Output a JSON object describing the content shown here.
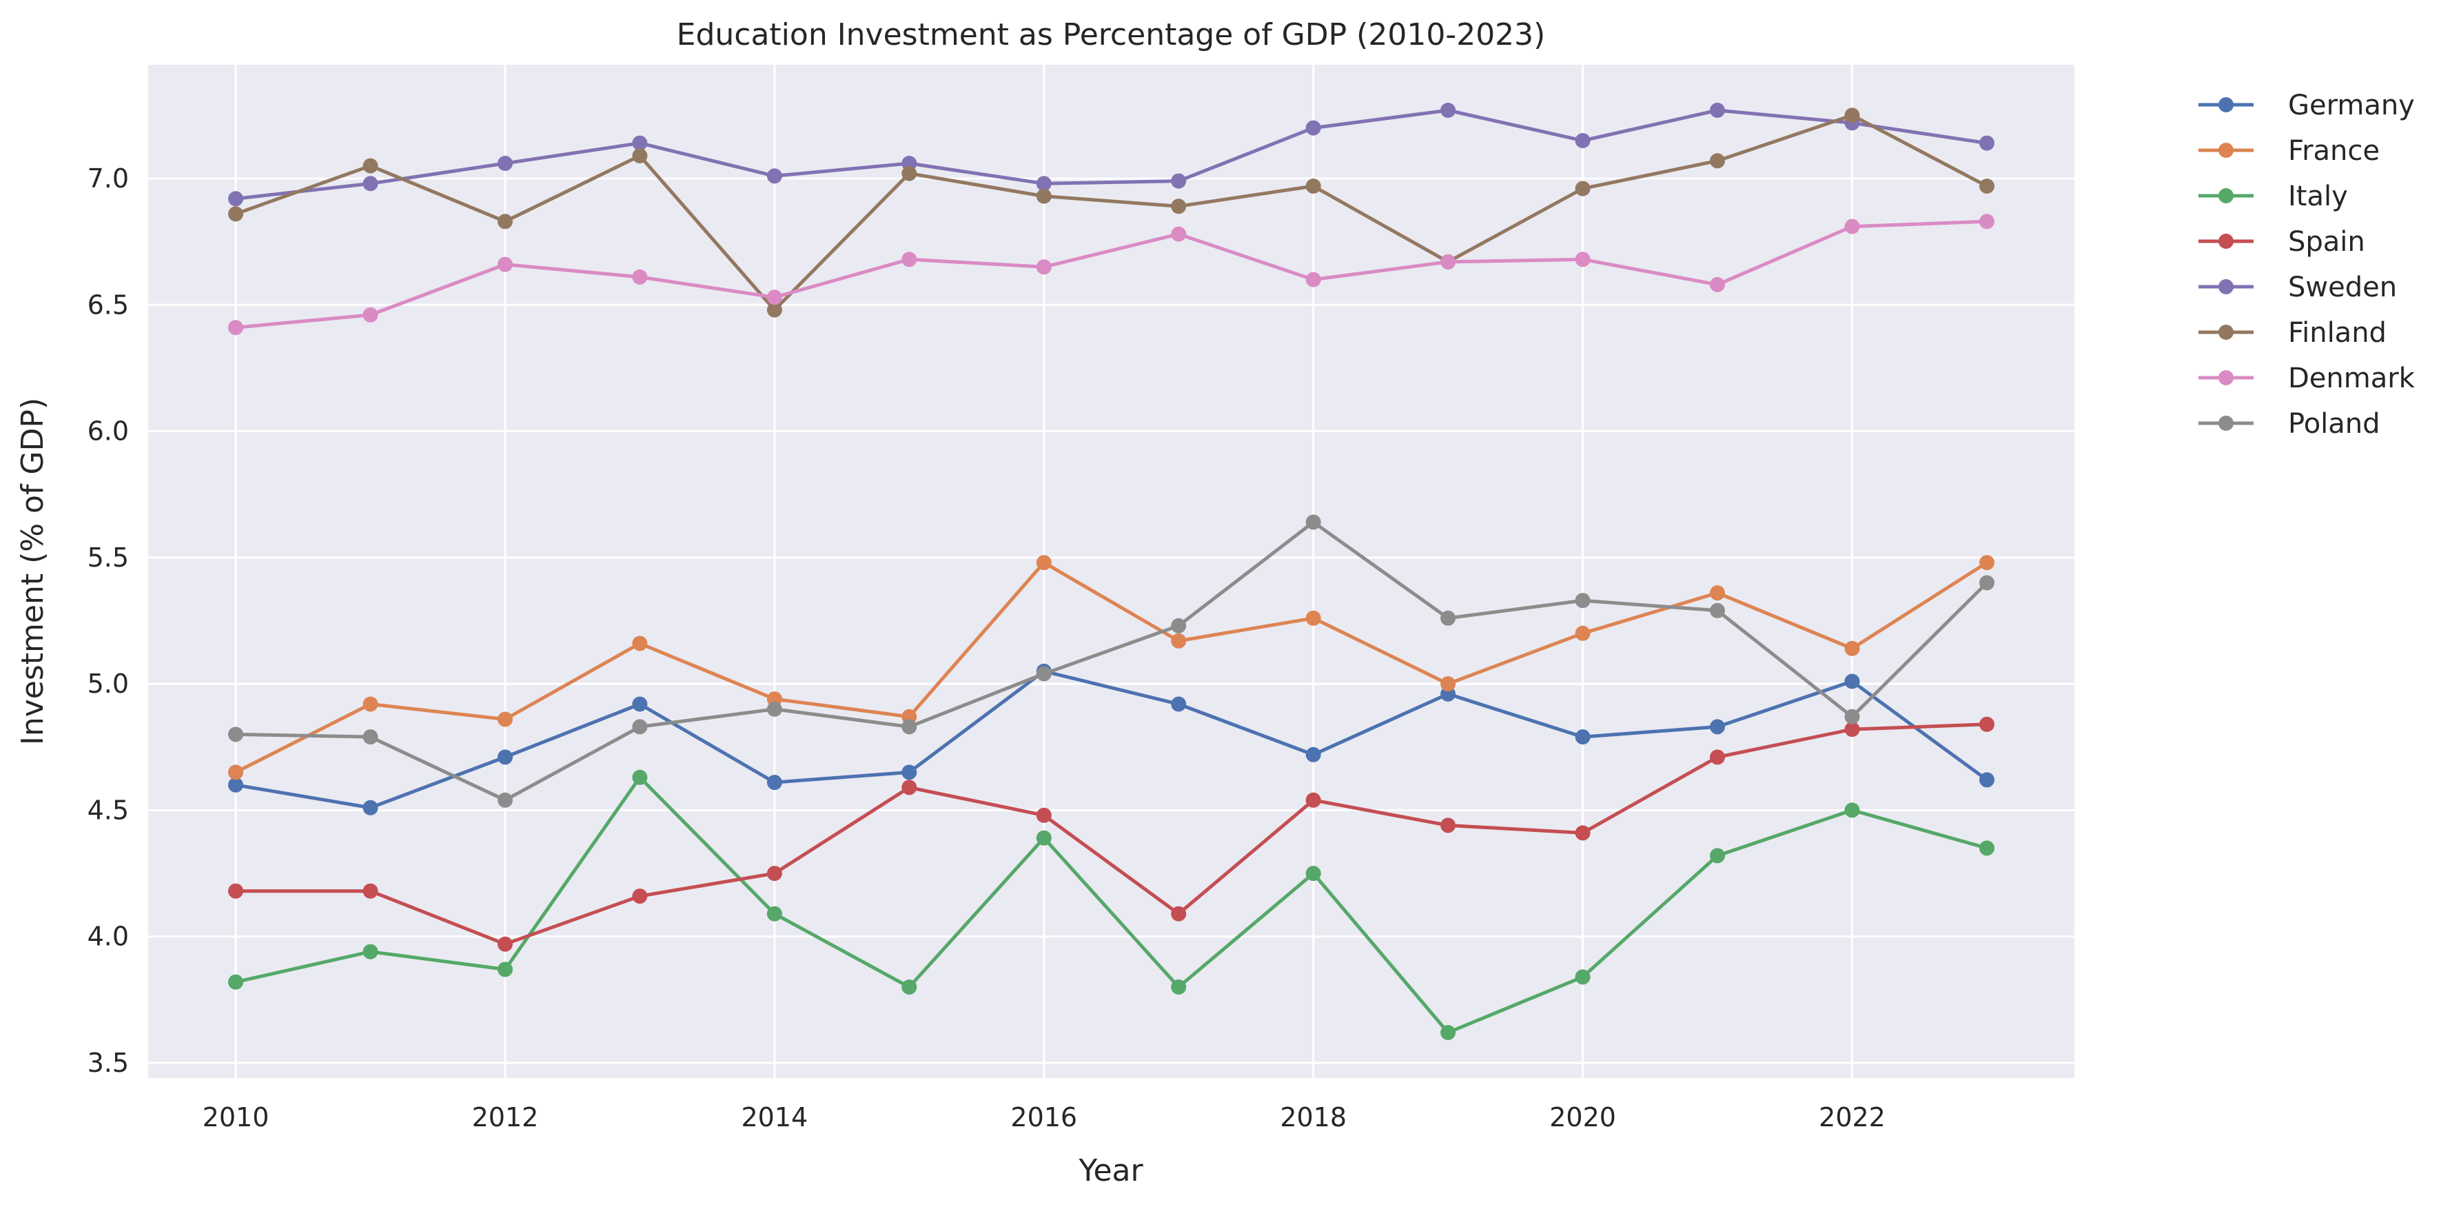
{
  "chart_data": {
    "type": "line",
    "title": "Education Investment as Percentage of GDP (2010-2023)",
    "xlabel": "Year",
    "ylabel": "Investment (% of GDP)",
    "x": [
      2010,
      2011,
      2012,
      2013,
      2014,
      2015,
      2016,
      2017,
      2018,
      2019,
      2020,
      2021,
      2022,
      2023
    ],
    "xlim": [
      2009.35,
      2023.65
    ],
    "ylim": [
      3.44,
      7.45
    ],
    "xticks": [
      2010,
      2012,
      2014,
      2016,
      2018,
      2020,
      2022
    ],
    "yticks": [
      3.5,
      4.0,
      4.5,
      5.0,
      5.5,
      6.0,
      6.5,
      7.0
    ],
    "grid": true,
    "background": "#eaeaf2",
    "legend_position": "outside-top-right",
    "series": [
      {
        "name": "Germany",
        "color": "#4c72b0",
        "values": [
          4.6,
          4.51,
          4.71,
          4.92,
          4.61,
          4.65,
          5.05,
          4.92,
          4.72,
          4.96,
          4.79,
          4.83,
          5.01,
          4.62
        ]
      },
      {
        "name": "France",
        "color": "#dd8452",
        "values": [
          4.65,
          4.92,
          4.86,
          5.16,
          4.94,
          4.87,
          5.48,
          5.17,
          5.26,
          5.0,
          5.2,
          5.36,
          5.14,
          5.48
        ]
      },
      {
        "name": "Italy",
        "color": "#55a868",
        "values": [
          3.82,
          3.94,
          3.87,
          4.63,
          4.09,
          3.8,
          4.39,
          3.8,
          4.25,
          3.62,
          3.84,
          4.32,
          4.5,
          4.35
        ]
      },
      {
        "name": "Spain",
        "color": "#c44e52",
        "values": [
          4.18,
          4.18,
          3.97,
          4.16,
          4.25,
          4.59,
          4.48,
          4.09,
          4.54,
          4.44,
          4.41,
          4.71,
          4.82,
          4.84
        ]
      },
      {
        "name": "Sweden",
        "color": "#8172b3",
        "values": [
          6.92,
          6.98,
          7.06,
          7.14,
          7.01,
          7.06,
          6.98,
          6.99,
          7.2,
          7.27,
          7.15,
          7.27,
          7.22,
          7.14
        ]
      },
      {
        "name": "Finland",
        "color": "#937860",
        "values": [
          6.86,
          7.05,
          6.83,
          7.09,
          6.48,
          7.02,
          6.93,
          6.89,
          6.97,
          6.67,
          6.96,
          7.07,
          7.25,
          6.97
        ]
      },
      {
        "name": "Denmark",
        "color": "#da8bc3",
        "values": [
          6.41,
          6.46,
          6.66,
          6.61,
          6.53,
          6.68,
          6.65,
          6.78,
          6.6,
          6.67,
          6.68,
          6.58,
          6.81,
          6.83
        ]
      },
      {
        "name": "Poland",
        "color": "#8c8c8c",
        "values": [
          4.8,
          4.79,
          4.54,
          4.83,
          4.9,
          4.83,
          5.04,
          5.23,
          5.64,
          5.26,
          5.33,
          5.29,
          4.87,
          5.4
        ]
      }
    ]
  }
}
